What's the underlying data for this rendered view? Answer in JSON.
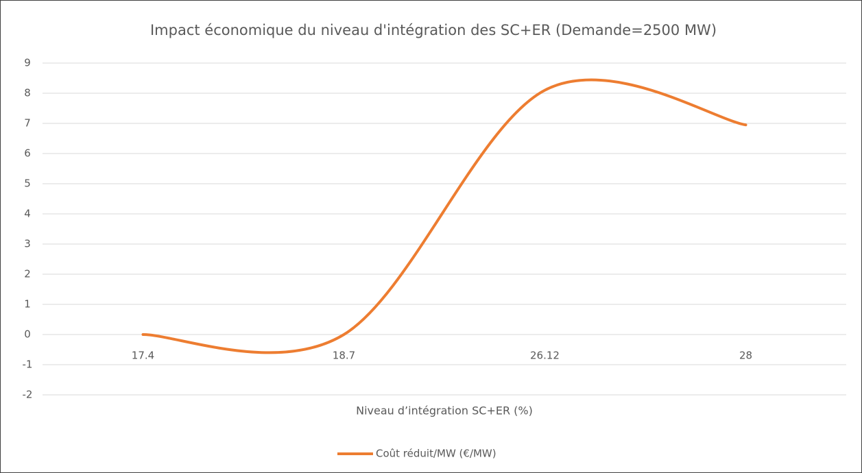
{
  "chart_data": {
    "type": "line",
    "title": "Impact économique du niveau d'intégration des SC+ER (Demande=2500 MW)",
    "x_label": "Niveau d’intégration SC+ER (%)",
    "categories": [
      "17.4",
      "18.7",
      "26.12",
      "28"
    ],
    "series": [
      {
        "name": "Coût réduit/MW (€/MW)",
        "color": "#ed7d31",
        "values": [
          0,
          0,
          8.1,
          6.95
        ]
      }
    ],
    "ylim": [
      -2,
      9
    ],
    "yticks": [
      -2,
      -1,
      0,
      1,
      2,
      3,
      4,
      5,
      6,
      7,
      8,
      9
    ],
    "grid": true,
    "smooth": true,
    "legend": "bottom"
  }
}
